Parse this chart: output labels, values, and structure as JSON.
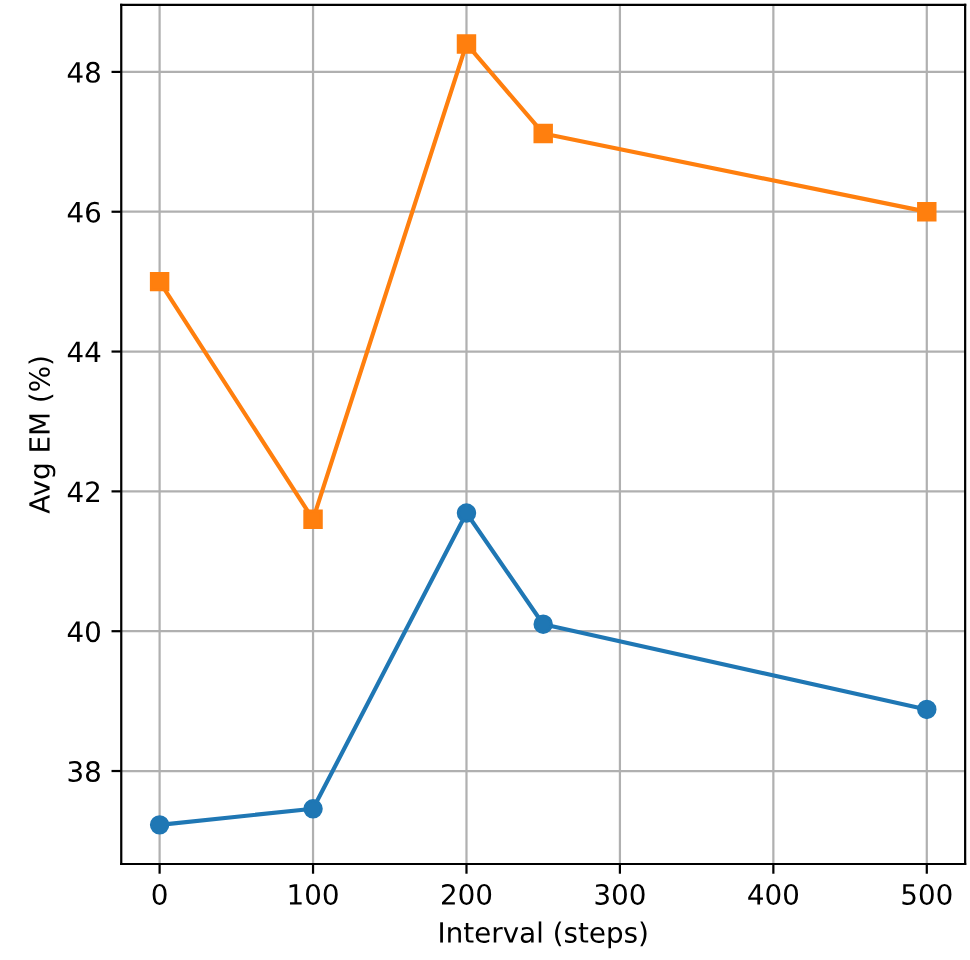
{
  "chart_data": {
    "type": "line",
    "xlabel": "Interval (steps)",
    "ylabel": "Avg EM (%)",
    "x": [
      0,
      100,
      200,
      250,
      500
    ],
    "series": [
      {
        "color": "#1f77b4",
        "marker": "circle",
        "values": [
          37.23,
          37.46,
          41.69,
          40.1,
          38.88
        ]
      },
      {
        "color": "#ff7f0e",
        "marker": "square",
        "values": [
          45.0,
          41.6,
          48.4,
          47.12,
          46.0
        ]
      }
    ],
    "xlim": [
      -25,
      525
    ],
    "xticks": [
      0,
      100,
      200,
      300,
      400,
      500
    ],
    "ylim": [
      36.67,
      48.96
    ],
    "yticks": [
      38,
      40,
      42,
      44,
      46,
      48
    ],
    "grid": true,
    "line_style": "solid"
  }
}
